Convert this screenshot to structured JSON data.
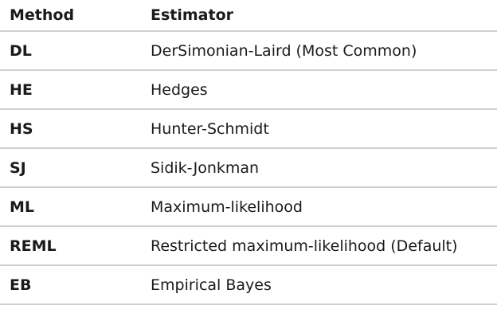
{
  "table": {
    "headers": {
      "method": "Method",
      "estimator": "Estimator"
    },
    "rows": [
      {
        "method": "DL",
        "estimator": "DerSimonian-Laird (Most Common)"
      },
      {
        "method": "HE",
        "estimator": "Hedges"
      },
      {
        "method": "HS",
        "estimator": "Hunter-Schmidt"
      },
      {
        "method": "SJ",
        "estimator": "Sidik-Jonkman"
      },
      {
        "method": "ML",
        "estimator": "Maximum-likelihood"
      },
      {
        "method": "REML",
        "estimator": "Restricted maximum-likelihood (Default)"
      },
      {
        "method": "EB",
        "estimator": "Empirical Bayes"
      }
    ]
  }
}
